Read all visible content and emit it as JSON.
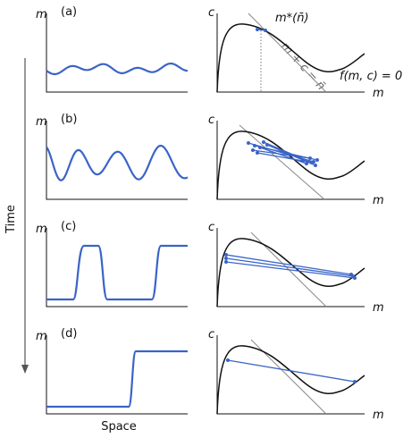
{
  "time_label": "Time",
  "space_label": "Space",
  "panels": [
    {
      "label": "(a)",
      "left_y": "m",
      "right_y": "c",
      "right_x": "m"
    },
    {
      "label": "(b)",
      "left_y": "m",
      "right_y": "c",
      "right_x": "m"
    },
    {
      "label": "(c)",
      "left_y": "m",
      "right_y": "c",
      "right_x": "m"
    },
    {
      "label": "(d)",
      "left_y": "m",
      "right_y": "c",
      "right_x": "m"
    }
  ],
  "annotations": {
    "fixed_point": "m*(n̄)",
    "line": "m + c = n̄",
    "nullcline": "f(m, c) = 0"
  }
}
